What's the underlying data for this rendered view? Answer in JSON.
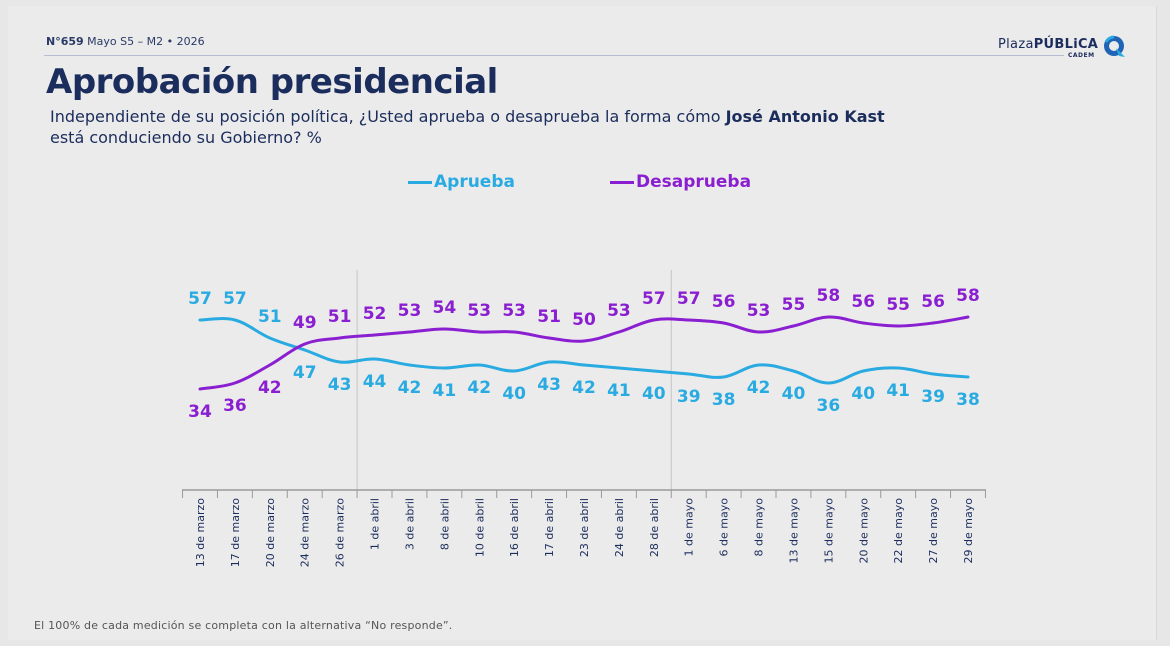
{
  "header": {
    "meta_number": "N°659",
    "meta_rest": "Mayo S5 – M2 • 2026",
    "brand_light": "Plaza",
    "brand_bold": "PÚBLiCA",
    "brand_sub": "CADEM"
  },
  "title": "Aprobación presidencial",
  "question_part1": "Independiente de su posición política, ¿Usted aprueba o desaprueba la forma cómo ",
  "question_bold": "José Antonio Kast",
  "question_part2": "está conduciendo su Gobierno? %",
  "footnote": "El 100% de cada medición se completa con la alternativa “No responde”.",
  "colors": {
    "aprueba": "#29abe2",
    "desaprueba": "#8a1fd1",
    "text": "#1b2d5c"
  },
  "chart_data": {
    "type": "line",
    "categories": [
      "13 de marzo",
      "17 de marzo",
      "20 de marzo",
      "24 de marzo",
      "26 de marzo",
      "1 de abril",
      "3 de abril",
      "8 de abril",
      "10 de abril",
      "16 de abril",
      "17 de abril",
      "23 de abril",
      "24 de abril",
      "28 de abril",
      "1 de mayo",
      "6 de mayo",
      "8 de mayo",
      "13 de mayo",
      "15 de mayo",
      "20 de mayo",
      "22 de mayo",
      "27 de mayo",
      "29 de mayo"
    ],
    "series": [
      {
        "name": "Aprueba",
        "color": "#29abe2",
        "values": [
          57,
          57,
          51,
          47,
          43,
          44,
          42,
          41,
          42,
          40,
          43,
          42,
          41,
          40,
          39,
          38,
          42,
          40,
          36,
          40,
          41,
          39,
          38
        ]
      },
      {
        "name": "Desaprueba",
        "color": "#8a1fd1",
        "values": [
          34,
          36,
          42,
          49,
          51,
          52,
          53,
          54,
          53,
          53,
          51,
          50,
          53,
          57,
          57,
          56,
          53,
          55,
          58,
          56,
          55,
          56,
          58
        ]
      }
    ],
    "legend_position": "top-center",
    "grid": false,
    "ylim": [
      30,
      62
    ]
  }
}
